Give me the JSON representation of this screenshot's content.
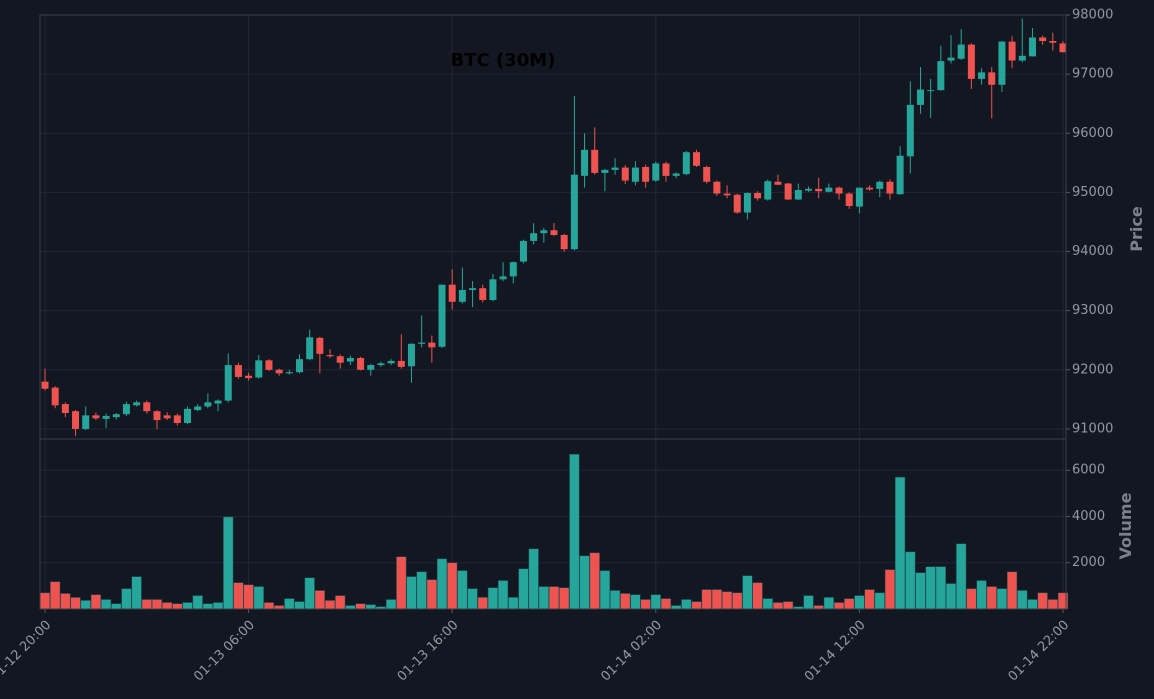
{
  "chart_data": {
    "type": "candlestick",
    "title": "BTC (30M)",
    "ylabel": "Price",
    "volume_label": "Volume",
    "up_color": "#26a69a",
    "down_color": "#ef5350",
    "grid": true,
    "ylim": [
      90830,
      98000
    ],
    "yticks": [
      91000,
      92000,
      93000,
      94000,
      95000,
      96000,
      97000,
      98000
    ],
    "volume_ylim": [
      0,
      7350
    ],
    "volume_yticks": [
      2000,
      4000,
      6000
    ],
    "categories": [
      "01-12 20:00",
      null,
      null,
      null,
      null,
      null,
      null,
      null,
      null,
      null,
      null,
      null,
      null,
      null,
      null,
      null,
      null,
      null,
      null,
      null,
      "01-13 06:00",
      null,
      null,
      null,
      null,
      null,
      null,
      null,
      null,
      null,
      null,
      null,
      null,
      null,
      null,
      null,
      null,
      null,
      null,
      null,
      "01-13 16:00",
      null,
      null,
      null,
      null,
      null,
      null,
      null,
      null,
      null,
      null,
      null,
      null,
      null,
      null,
      null,
      null,
      null,
      null,
      null,
      "01-14 02:00",
      null,
      null,
      null,
      null,
      null,
      null,
      null,
      null,
      null,
      null,
      null,
      null,
      null,
      null,
      null,
      null,
      null,
      null,
      null,
      "01-14 12:00",
      null,
      null,
      null,
      null,
      null,
      null,
      null,
      null,
      null,
      null,
      null,
      null,
      null,
      null,
      null,
      null,
      null,
      null,
      null,
      "01-14 22:00"
    ],
    "ohlc": [
      [
        91800,
        92020,
        91650,
        91680
      ],
      [
        91700,
        91720,
        91350,
        91400
      ],
      [
        91420,
        91450,
        91200,
        91270
      ],
      [
        91300,
        91320,
        90880,
        91000
      ],
      [
        91000,
        91380,
        90980,
        91230
      ],
      [
        91230,
        91280,
        91150,
        91180
      ],
      [
        91170,
        91260,
        91020,
        91220
      ],
      [
        91200,
        91270,
        91160,
        91250
      ],
      [
        91250,
        91460,
        91220,
        91420
      ],
      [
        91400,
        91480,
        91380,
        91450
      ],
      [
        91450,
        91480,
        91260,
        91300
      ],
      [
        91300,
        91320,
        91000,
        91150
      ],
      [
        91230,
        91280,
        91150,
        91180
      ],
      [
        91230,
        91260,
        91060,
        91100
      ],
      [
        91100,
        91380,
        91080,
        91340
      ],
      [
        91320,
        91420,
        91300,
        91380
      ],
      [
        91380,
        91600,
        91350,
        91450
      ],
      [
        91430,
        91500,
        91300,
        91480
      ],
      [
        91480,
        92280,
        91450,
        92080
      ],
      [
        92080,
        92120,
        91850,
        91880
      ],
      [
        91900,
        91950,
        91820,
        91860
      ],
      [
        91870,
        92250,
        91850,
        92160
      ],
      [
        92160,
        92180,
        91980,
        92000
      ],
      [
        92000,
        92020,
        91900,
        91940
      ],
      [
        91940,
        92000,
        91920,
        91960
      ],
      [
        91960,
        92260,
        91940,
        92180
      ],
      [
        92180,
        92680,
        92160,
        92550
      ],
      [
        92540,
        92560,
        91940,
        92270
      ],
      [
        92250,
        92350,
        92200,
        92230
      ],
      [
        92230,
        92260,
        92020,
        92120
      ],
      [
        92140,
        92240,
        92080,
        92200
      ],
      [
        92200,
        92220,
        91990,
        92000
      ],
      [
        92000,
        92100,
        91900,
        92080
      ],
      [
        92080,
        92140,
        92050,
        92110
      ],
      [
        92110,
        92180,
        92080,
        92150
      ],
      [
        92150,
        92600,
        92020,
        92050
      ],
      [
        92060,
        92450,
        91780,
        92440
      ],
      [
        92440,
        92920,
        92380,
        92460
      ],
      [
        92460,
        92580,
        92120,
        92380
      ],
      [
        92390,
        93440,
        92370,
        93440
      ],
      [
        93440,
        93700,
        93020,
        93150
      ],
      [
        93150,
        93730,
        93120,
        93350
      ],
      [
        93350,
        93500,
        93060,
        93380
      ],
      [
        93380,
        93440,
        93140,
        93180
      ],
      [
        93180,
        93620,
        93160,
        93530
      ],
      [
        93530,
        93820,
        93500,
        93580
      ],
      [
        93580,
        93830,
        93460,
        93820
      ],
      [
        93830,
        94200,
        93800,
        94180
      ],
      [
        94180,
        94480,
        94120,
        94310
      ],
      [
        94310,
        94400,
        94150,
        94360
      ],
      [
        94360,
        94480,
        94260,
        94280
      ],
      [
        94280,
        94300,
        94000,
        94040
      ],
      [
        94040,
        96630,
        94020,
        95300
      ],
      [
        95280,
        96000,
        95080,
        95720
      ],
      [
        95720,
        96100,
        95300,
        95330
      ],
      [
        95330,
        95400,
        95020,
        95380
      ],
      [
        95380,
        95580,
        95300,
        95420
      ],
      [
        95420,
        95460,
        95140,
        95200
      ],
      [
        95180,
        95530,
        95120,
        95420
      ],
      [
        95430,
        95470,
        95080,
        95180
      ],
      [
        95200,
        95520,
        95180,
        95490
      ],
      [
        95490,
        95520,
        95180,
        95280
      ],
      [
        95280,
        95340,
        95240,
        95320
      ],
      [
        95310,
        95700,
        95290,
        95680
      ],
      [
        95680,
        95720,
        95430,
        95450
      ],
      [
        95430,
        95450,
        95150,
        95180
      ],
      [
        95180,
        95200,
        94940,
        94980
      ],
      [
        94980,
        95120,
        94900,
        94950
      ],
      [
        94960,
        94980,
        94640,
        94660
      ],
      [
        94660,
        95000,
        94540,
        94990
      ],
      [
        94990,
        95020,
        94860,
        94900
      ],
      [
        94880,
        95220,
        94860,
        95190
      ],
      [
        95180,
        95300,
        95120,
        95130
      ],
      [
        95150,
        95160,
        94870,
        94880
      ],
      [
        94880,
        95150,
        94870,
        95040
      ],
      [
        95030,
        95100,
        95010,
        95060
      ],
      [
        95060,
        95250,
        94900,
        95020
      ],
      [
        95010,
        95150,
        95000,
        95080
      ],
      [
        95080,
        95100,
        94880,
        94980
      ],
      [
        94980,
        95000,
        94720,
        94770
      ],
      [
        94760,
        95080,
        94650,
        95080
      ],
      [
        95080,
        95120,
        95030,
        95050
      ],
      [
        95060,
        95200,
        94920,
        95180
      ],
      [
        95180,
        95220,
        94880,
        94980
      ],
      [
        94970,
        95780,
        94960,
        95620
      ],
      [
        95610,
        96880,
        95320,
        96480
      ],
      [
        96480,
        97120,
        96330,
        96740
      ],
      [
        96720,
        96920,
        96260,
        96730
      ],
      [
        96730,
        97480,
        96720,
        97220
      ],
      [
        97230,
        97660,
        97180,
        97280
      ],
      [
        97260,
        97760,
        97240,
        97500
      ],
      [
        97500,
        97520,
        96750,
        96920
      ],
      [
        96920,
        97100,
        96820,
        97030
      ],
      [
        97030,
        97120,
        96250,
        96820
      ],
      [
        96820,
        97560,
        96700,
        97550
      ],
      [
        97550,
        97640,
        97100,
        97230
      ],
      [
        97230,
        97940,
        97200,
        97310
      ],
      [
        97300,
        97780,
        97300,
        97620
      ],
      [
        97620,
        97650,
        97500,
        97560
      ],
      [
        97560,
        97700,
        97400,
        97530
      ],
      [
        97520,
        97560,
        97370,
        97370
      ]
    ],
    "volume": [
      700,
      1180,
      670,
      500,
      370,
      620,
      410,
      230,
      880,
      1400,
      410,
      410,
      280,
      230,
      280,
      580,
      230,
      280,
      3980,
      1140,
      1050,
      970,
      280,
      150,
      450,
      320,
      1350,
      800,
      370,
      580,
      150,
      230,
      190,
      100,
      410,
      2260,
      1400,
      1610,
      1270,
      2170,
      2000,
      1660,
      880,
      500,
      920,
      1230,
      500,
      1740,
      2600,
      970,
      970,
      920,
      6690,
      2300,
      2430,
      1660,
      800,
      670,
      620,
      410,
      620,
      450,
      150,
      410,
      320,
      840,
      840,
      750,
      700,
      1440,
      1140,
      450,
      280,
      320,
      100,
      580,
      150,
      500,
      280,
      450,
      580,
      840,
      700,
      1700,
      5700,
      2470,
      1570,
      1830,
      1830,
      1100,
      2820,
      880,
      1230,
      970,
      880,
      1610,
      800,
      410,
      700,
      410,
      700
    ]
  }
}
